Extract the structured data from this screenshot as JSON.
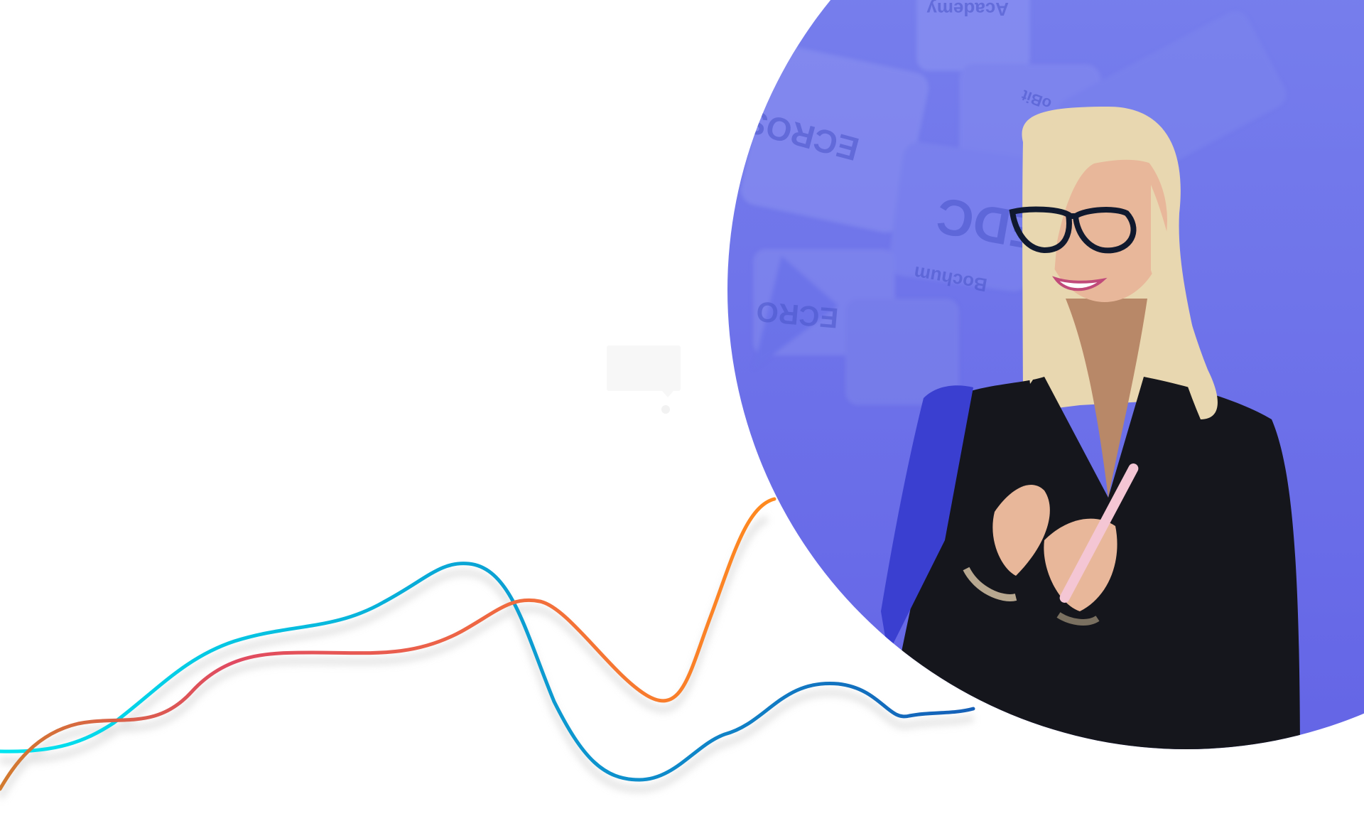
{
  "colors": {
    "background": "#ffffff",
    "circle_top": "#7a83ee",
    "circle_bottom": "#6465e6",
    "line_cyan_start": "#00e5f0",
    "line_blue_end": "#1560b8",
    "line_orange_start": "#d27a2e",
    "line_red_mid": "#e04a62",
    "line_orange_end": "#ff8a1e",
    "shadow": "#d0d0d0",
    "jacket": "#15161c",
    "hair": "#e8d7b0",
    "skin": "#e8b79a"
  },
  "backdrop_signs": [
    "Academy",
    "ECROS",
    "EDC",
    "Bochum",
    "ECRO",
    "oBit"
  ],
  "icons": [
    "speech-bubble-icon"
  ]
}
